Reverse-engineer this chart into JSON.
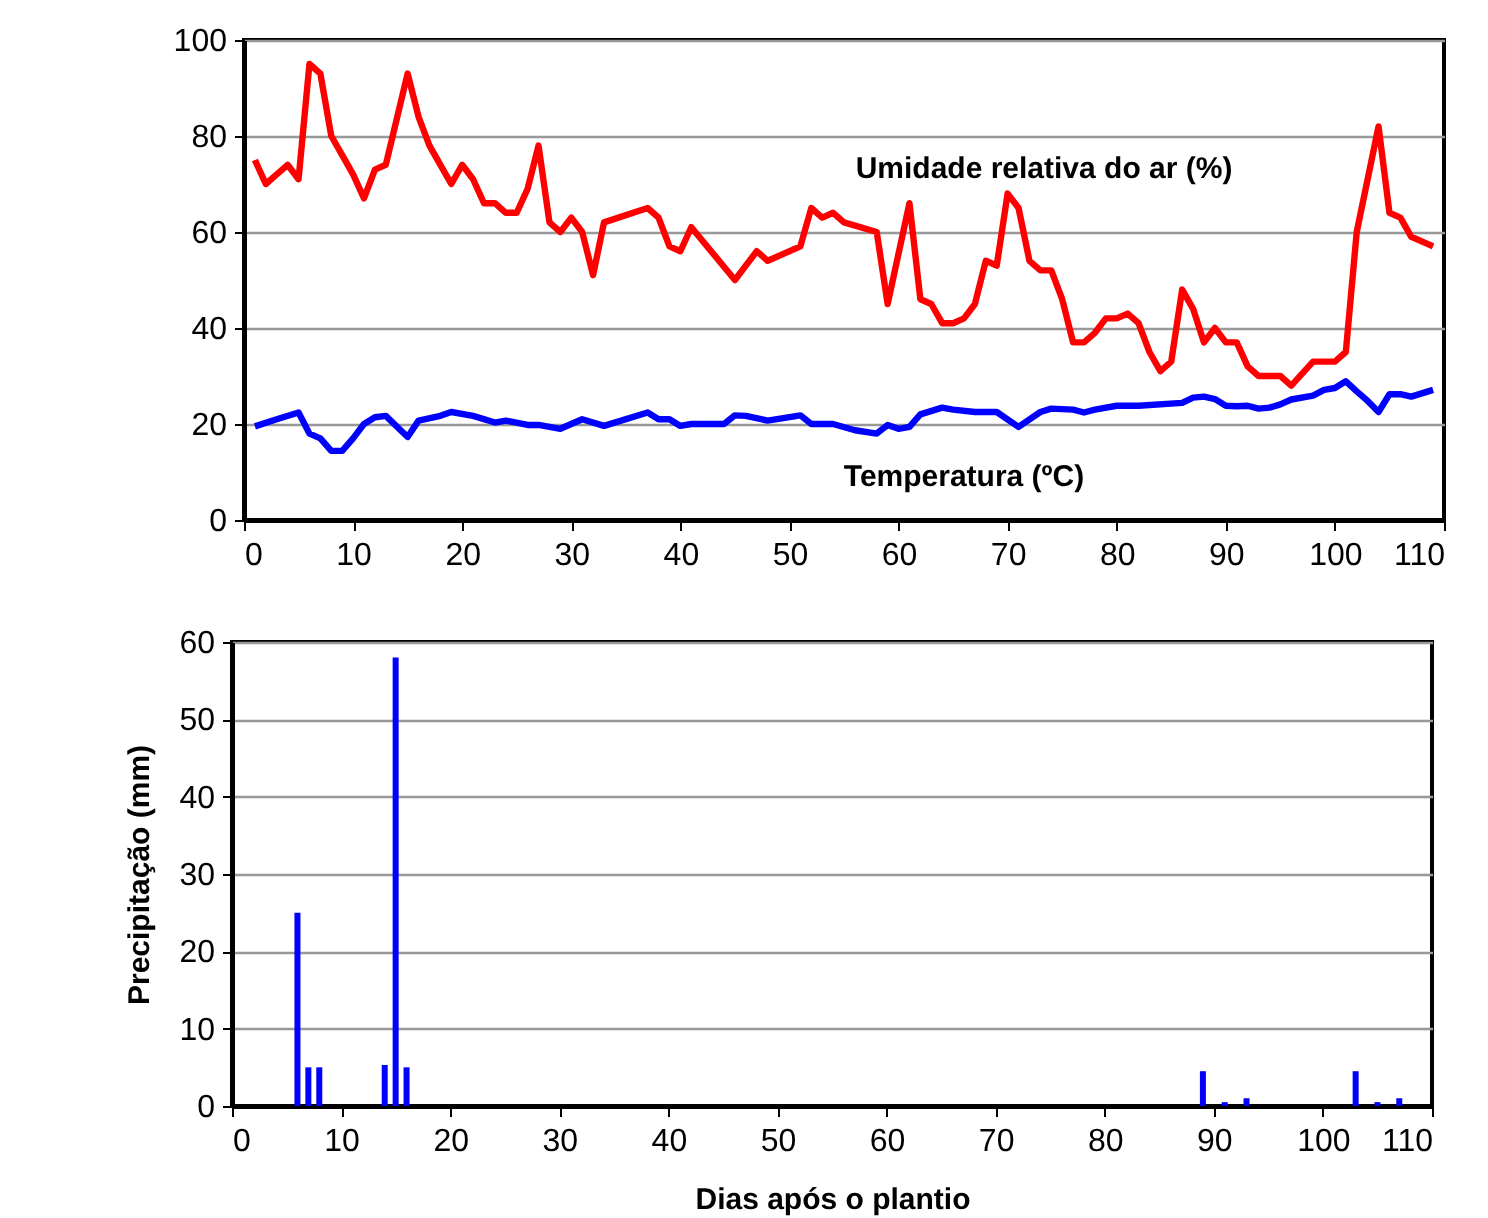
{
  "chart_data": [
    {
      "type": "line",
      "xlim": [
        0,
        110
      ],
      "xticks": [
        0,
        10,
        20,
        30,
        40,
        50,
        60,
        70,
        80,
        90,
        100,
        110
      ],
      "ylim": [
        0,
        100
      ],
      "yticks": [
        0,
        20,
        40,
        60,
        80,
        100
      ],
      "grid": "y",
      "legend": false,
      "series": [
        {
          "name": "Umidade relativa do ar (%)",
          "color": "#ff0000",
          "x": [
            1,
            2,
            3,
            4,
            5,
            6,
            7,
            8,
            9,
            10,
            11,
            12,
            13,
            15,
            16,
            17,
            18,
            19,
            20,
            21,
            22,
            23,
            24,
            25,
            26,
            27,
            28,
            29,
            30,
            31,
            32,
            33,
            37,
            38,
            39,
            40,
            41,
            45,
            47,
            48,
            51,
            52,
            53,
            54,
            55,
            58,
            59,
            61,
            62,
            63,
            64,
            65,
            66,
            67,
            68,
            69,
            70,
            71,
            72,
            73,
            74,
            75,
            76,
            77,
            78,
            79,
            80,
            81,
            82,
            83,
            84,
            85,
            86,
            87,
            88,
            89,
            90,
            91,
            92,
            93,
            95,
            96,
            98,
            100,
            101,
            102,
            104,
            105,
            106,
            107,
            109
          ],
          "values": [
            75,
            70,
            72,
            74,
            71,
            95,
            93,
            80,
            76,
            72,
            67,
            73,
            74,
            93,
            84,
            78,
            74,
            70,
            74,
            71,
            66,
            66,
            64,
            64,
            69,
            78,
            62,
            60,
            63,
            60,
            51,
            62,
            65,
            63,
            57,
            56,
            61,
            50,
            56,
            54,
            57,
            65,
            63,
            64,
            62,
            60,
            45,
            66,
            46,
            45,
            41,
            41,
            42,
            45,
            54,
            53,
            68,
            65,
            54,
            52,
            52,
            46,
            37,
            37,
            39,
            42,
            42,
            43,
            41,
            35,
            31,
            33,
            48,
            44,
            37,
            40,
            37,
            37,
            32,
            30,
            30,
            28,
            33,
            33,
            35,
            60,
            82,
            64,
            63,
            59,
            57
          ]
        },
        {
          "name": "Temperatura (ºC)",
          "color": "#0000ff",
          "x": [
            1,
            3,
            5,
            6,
            7,
            8,
            9,
            10,
            11,
            12,
            13,
            15,
            16,
            18,
            19,
            21,
            23,
            24,
            26,
            27,
            29,
            31,
            33,
            37,
            38,
            39,
            40,
            41,
            44,
            45,
            46,
            48,
            51,
            52,
            54,
            56,
            58,
            59,
            60,
            61,
            62,
            64,
            65,
            67,
            69,
            71,
            73,
            74,
            76,
            77,
            78,
            80,
            82,
            86,
            87,
            88,
            89,
            90,
            91,
            92,
            93,
            94,
            95,
            96,
            98,
            99,
            100,
            101,
            102,
            103,
            104,
            105,
            106,
            107,
            109
          ],
          "values": [
            19.5,
            21,
            22.4,
            18,
            17,
            14.4,
            14.4,
            17,
            20,
            21.4,
            21.7,
            17.3,
            20.7,
            21.7,
            22.5,
            21.7,
            20.3,
            20.7,
            19.8,
            19.8,
            19,
            21,
            19.6,
            22.4,
            21,
            21,
            19.6,
            20,
            20,
            21.8,
            21.7,
            20.7,
            21.8,
            20,
            20,
            18.7,
            18,
            19.8,
            19,
            19.4,
            22,
            23.4,
            23,
            22.5,
            22.5,
            19.4,
            22.5,
            23.2,
            23,
            22.4,
            23,
            23.8,
            23.8,
            24.4,
            25.5,
            25.7,
            25.2,
            23.8,
            23.7,
            23.8,
            23.2,
            23.4,
            24.1,
            25.1,
            25.9,
            27.1,
            27.5,
            28.9,
            26.8,
            24.8,
            22.5,
            26.2,
            26.2,
            25.7,
            27.1
          ]
        }
      ]
    },
    {
      "type": "bar",
      "xlabel": "Dias após o plantio",
      "ylabel": "Precipitação (mm)",
      "xlim": [
        0,
        110
      ],
      "xticks": [
        0,
        10,
        20,
        30,
        40,
        50,
        60,
        70,
        80,
        90,
        100,
        110
      ],
      "ylim": [
        0,
        60
      ],
      "yticks": [
        0,
        10,
        20,
        30,
        40,
        50,
        60
      ],
      "grid": "y",
      "color": "#0000ff",
      "x": [
        6,
        7,
        8,
        14,
        15,
        16,
        89,
        91,
        93,
        103,
        105,
        107
      ],
      "values": [
        25,
        5,
        5,
        5.3,
        58,
        5,
        4.5,
        0.5,
        1,
        4.5,
        0.5,
        1
      ]
    }
  ]
}
